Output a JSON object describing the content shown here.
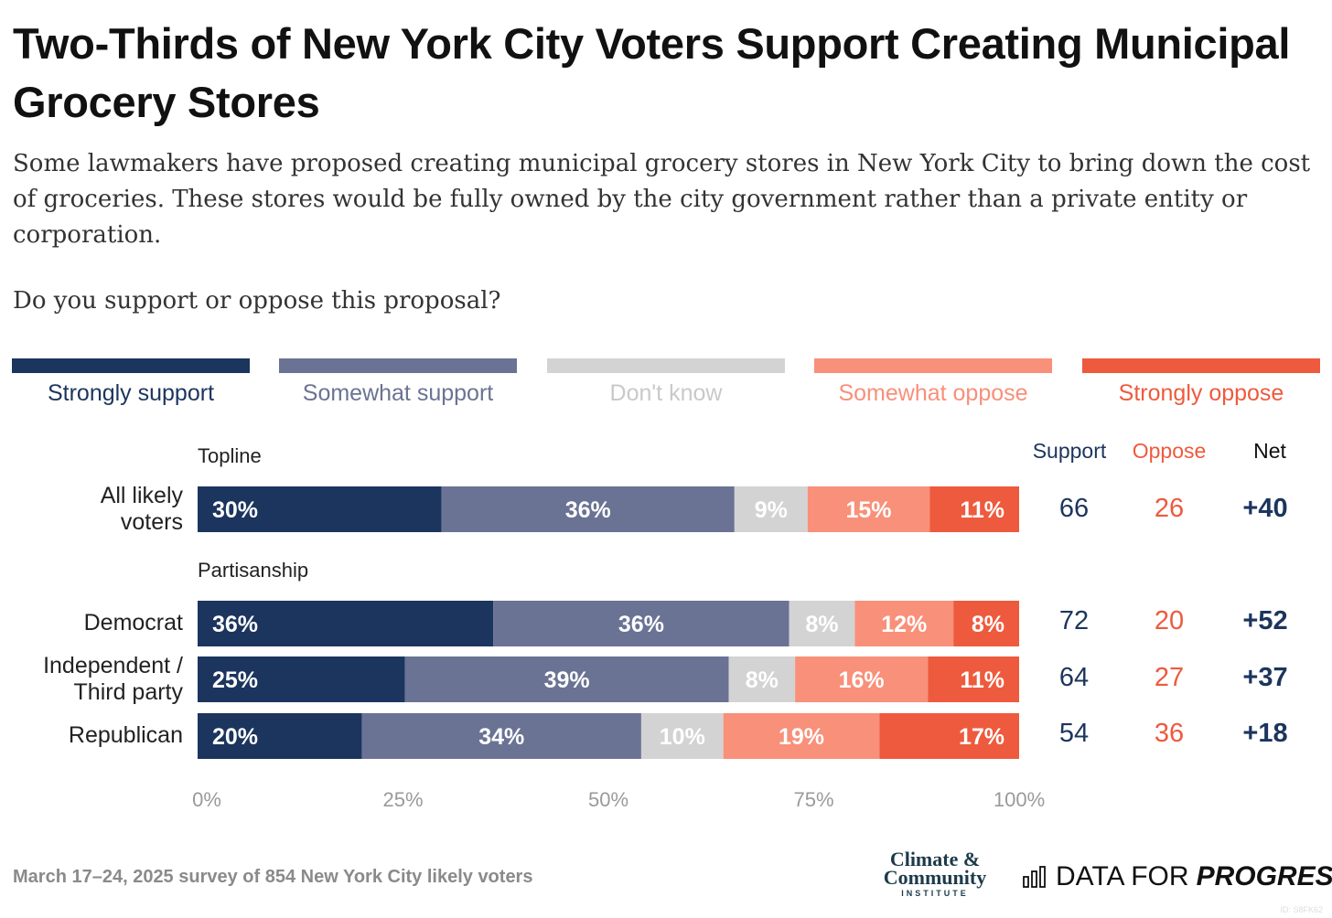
{
  "title": "Two-Thirds of New York City Voters Support Creating Municipal Grocery Stores",
  "subtitle": "Some lawmakers have proposed creating municipal grocery stores in New York City to bring down the cost of groceries. These stores would be fully owned by the city government rather than a private entity or corporation.",
  "question": "Do you support or oppose this proposal?",
  "legend": [
    {
      "label": "Strongly support",
      "color": "#1c355e"
    },
    {
      "label": "Somewhat support",
      "color": "#6a7394"
    },
    {
      "label": "Don't know",
      "color": "#d3d3d3"
    },
    {
      "label": "Somewhat oppose",
      "color": "#f8907a"
    },
    {
      "label": "Strongly oppose",
      "color": "#ee5a3d"
    }
  ],
  "columns": {
    "support": "Support",
    "oppose": "Oppose",
    "net": "Net"
  },
  "sections": {
    "topline": "Topline",
    "partisanship": "Partisanship"
  },
  "rows": [
    {
      "label_line1": "All likely",
      "label_line2": "voters",
      "support": "66",
      "oppose": "26",
      "net": "+40"
    },
    {
      "label_line1": "Democrat",
      "label_line2": "",
      "support": "72",
      "oppose": "20",
      "net": "+52"
    },
    {
      "label_line1": "Independent /",
      "label_line2": "Third party",
      "support": "64",
      "oppose": "27",
      "net": "+37"
    },
    {
      "label_line1": "Republican",
      "label_line2": "",
      "support": "54",
      "oppose": "36",
      "net": "+18"
    }
  ],
  "chart_data": {
    "type": "bar",
    "orientation": "horizontal",
    "stacked": true,
    "categories": [
      "All likely voters",
      "Democrat",
      "Independent / Third party",
      "Republican"
    ],
    "series": [
      {
        "name": "Strongly support",
        "values": [
          30,
          36,
          25,
          20
        ]
      },
      {
        "name": "Somewhat support",
        "values": [
          36,
          36,
          39,
          34
        ]
      },
      {
        "name": "Don't know",
        "values": [
          9,
          8,
          8,
          10
        ]
      },
      {
        "name": "Somewhat oppose",
        "values": [
          15,
          12,
          16,
          19
        ]
      },
      {
        "name": "Strongly oppose",
        "values": [
          11,
          8,
          11,
          17
        ]
      }
    ],
    "data_labels": [
      [
        "30%",
        "36%",
        "9%",
        "15%",
        "11%"
      ],
      [
        "36%",
        "36%",
        "8%",
        "12%",
        "8%"
      ],
      [
        "25%",
        "39%",
        "8%",
        "16%",
        "11%"
      ],
      [
        "20%",
        "34%",
        "10%",
        "19%",
        "17%"
      ]
    ],
    "xlim": [
      0,
      100
    ],
    "x_ticks": [
      "0%",
      "25%",
      "50%",
      "75%",
      "100%"
    ],
    "grid": false,
    "legend_placement": "top"
  },
  "footer": "March 17–24, 2025 survey of 854 New York City likely voters",
  "logos": {
    "cci_line1": "Climate &",
    "cci_line2": "Community",
    "cci_line3": "INSTITUTE",
    "dfp_main": "DATA FOR",
    "dfp_bold": "PROGRESS"
  },
  "id_mark": "ID: S8FK62"
}
